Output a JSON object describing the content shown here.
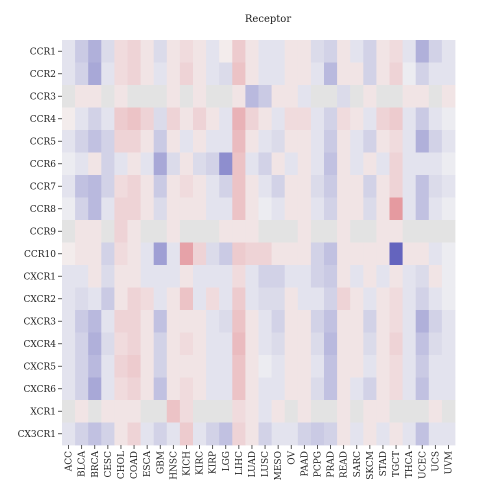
{
  "chart_data": {
    "type": "heatmap",
    "title": "Receptor",
    "rows": [
      "CCR1",
      "CCR2",
      "CCR3",
      "CCR4",
      "CCR5",
      "CCR6",
      "CCR7",
      "CCR8",
      "CCR9",
      "CCR10",
      "CXCR1",
      "CXCR2",
      "CXCR3",
      "CXCR4",
      "CXCR5",
      "CXCR6",
      "XCR1",
      "CX3CR1"
    ],
    "columns": [
      "ACC",
      "BLCA",
      "BRCA",
      "CESC",
      "CHOL",
      "COAD",
      "ESCA",
      "GBM",
      "HNSC",
      "KICH",
      "KIRC",
      "KIRP",
      "LGG",
      "LIHC",
      "LUAD",
      "LUSC",
      "MESO",
      "OV",
      "PAAD",
      "PCPG",
      "PRAD",
      "READ",
      "SARC",
      "SKCM",
      "STAD",
      "TGCT",
      "THCA",
      "UCEC",
      "UCS",
      "UVM"
    ],
    "color_scale": {
      "negative": "#4a4ab4",
      "zero": "#f4f4f4",
      "positive": "#d8505c",
      "missing": "#e3e3e3"
    },
    "values": [
      [
        -0.1,
        -0.25,
        -0.4,
        -0.15,
        0.15,
        0.2,
        0.1,
        -0.15,
        0.1,
        0.15,
        0.1,
        -0.1,
        0.05,
        0.25,
        0.1,
        -0.1,
        -0.1,
        0.1,
        0.1,
        -0.15,
        -0.2,
        0.1,
        -0.1,
        -0.2,
        0.1,
        0.15,
        -0.1,
        -0.4,
        -0.2,
        -0.1
      ],
      [
        -0.1,
        -0.2,
        -0.45,
        -0.1,
        0.15,
        0.2,
        0.1,
        -0.1,
        0.1,
        0.2,
        0.1,
        -0.1,
        -0.15,
        0.3,
        0.1,
        -0.1,
        -0.1,
        0.1,
        0.1,
        -0.1,
        -0.35,
        0.1,
        0.1,
        -0.2,
        0.1,
        0.2,
        -0.05,
        -0.2,
        -0.1,
        -0.1
      ],
      [
        null,
        0.1,
        0.1,
        null,
        0.1,
        null,
        null,
        null,
        0.1,
        null,
        0.1,
        null,
        null,
        0.1,
        -0.35,
        -0.25,
        0.1,
        0.1,
        -0.1,
        null,
        null,
        -0.15,
        null,
        0.1,
        null,
        null,
        0.1,
        0.1,
        null,
        0.1
      ],
      [
        0.05,
        -0.1,
        -0.2,
        -0.1,
        0.25,
        0.3,
        0.2,
        -0.15,
        0.2,
        0.1,
        0.2,
        0.1,
        -0.1,
        0.4,
        0.2,
        0.1,
        -0.1,
        0.15,
        0.15,
        -0.1,
        -0.2,
        0.15,
        0.1,
        -0.1,
        0.2,
        0.25,
        -0.1,
        -0.25,
        -0.1,
        -0.05
      ],
      [
        -0.1,
        -0.2,
        -0.3,
        -0.2,
        0.2,
        0.2,
        0.1,
        -0.25,
        0.1,
        -0.1,
        0.1,
        -0.1,
        -0.1,
        0.35,
        0.1,
        -0.1,
        -0.15,
        0.1,
        0.1,
        -0.1,
        -0.25,
        0.1,
        -0.1,
        -0.2,
        0.1,
        0.15,
        -0.1,
        -0.4,
        -0.2,
        -0.1
      ],
      [
        -0.05,
        -0.1,
        0.1,
        -0.2,
        -0.1,
        0.1,
        -0.1,
        -0.45,
        -0.15,
        0.1,
        -0.15,
        -0.2,
        -0.6,
        0.3,
        -0.1,
        -0.2,
        0.1,
        -0.1,
        0.1,
        -0.1,
        -0.3,
        0.1,
        -0.1,
        0.1,
        -0.1,
        0.2,
        -0.1,
        -0.1,
        -0.1,
        -0.05
      ],
      [
        -0.1,
        -0.3,
        -0.35,
        -0.2,
        0.15,
        0.2,
        0.1,
        -0.25,
        0.1,
        0.15,
        0.1,
        -0.1,
        -0.2,
        0.3,
        0.1,
        -0.1,
        -0.2,
        0.1,
        0.1,
        -0.15,
        -0.25,
        0.1,
        0.1,
        -0.2,
        0.1,
        0.2,
        -0.1,
        -0.3,
        -0.15,
        -0.1
      ],
      [
        -0.05,
        -0.2,
        -0.35,
        -0.1,
        0.2,
        0.2,
        0.1,
        -0.15,
        0.1,
        0.1,
        0.1,
        -0.1,
        -0.1,
        0.3,
        0.1,
        -0.05,
        -0.1,
        0.1,
        0.1,
        -0.1,
        -0.2,
        0.1,
        0.1,
        -0.15,
        0.1,
        0.55,
        -0.1,
        -0.3,
        -0.1,
        -0.05
      ],
      [
        null,
        0.1,
        0.1,
        null,
        0.2,
        0.1,
        null,
        null,
        0.1,
        null,
        null,
        null,
        0.1,
        0.1,
        0.1,
        null,
        null,
        null,
        0.1,
        null,
        null,
        0.1,
        null,
        null,
        0.1,
        0.1,
        null,
        null,
        null,
        null
      ],
      [
        0.05,
        0.1,
        0.1,
        -0.2,
        0.15,
        0.1,
        -0.1,
        -0.5,
        -0.1,
        0.5,
        0.2,
        -0.15,
        -0.25,
        0.25,
        0.2,
        0.2,
        0.1,
        0.1,
        0.1,
        -0.2,
        -0.3,
        0.1,
        0.1,
        0.1,
        0.1,
        -0.85,
        0.1,
        0.1,
        -0.1,
        -0.05
      ],
      [
        -0.1,
        -0.1,
        0.1,
        -0.15,
        0.1,
        0.1,
        -0.1,
        -0.1,
        -0.1,
        0.1,
        -0.1,
        -0.1,
        -0.1,
        0.15,
        -0.1,
        -0.2,
        -0.2,
        -0.1,
        -0.1,
        -0.2,
        -0.25,
        0.1,
        -0.1,
        0.1,
        -0.1,
        0.1,
        -0.1,
        -0.15,
        0.1,
        -0.05
      ],
      [
        -0.1,
        -0.15,
        -0.1,
        -0.25,
        0.1,
        0.2,
        0.15,
        -0.1,
        0.1,
        0.3,
        -0.1,
        0.15,
        -0.1,
        0.25,
        -0.1,
        -0.15,
        -0.15,
        0.1,
        -0.1,
        -0.1,
        -0.2,
        0.2,
        0.1,
        -0.1,
        0.1,
        0.15,
        -0.1,
        -0.2,
        -0.1,
        -0.05
      ],
      [
        -0.1,
        -0.25,
        -0.35,
        -0.1,
        0.2,
        0.2,
        0.1,
        -0.3,
        0.1,
        0.1,
        0.1,
        -0.1,
        -0.15,
        0.3,
        0.1,
        -0.1,
        -0.2,
        0.1,
        0.1,
        -0.2,
        -0.3,
        0.1,
        0.1,
        -0.2,
        0.1,
        0.15,
        -0.1,
        -0.4,
        -0.2,
        -0.1
      ],
      [
        -0.1,
        -0.2,
        -0.4,
        -0.15,
        0.15,
        0.2,
        0.1,
        -0.2,
        0.1,
        0.15,
        0.1,
        -0.1,
        -0.1,
        0.35,
        0.1,
        -0.1,
        -0.15,
        0.1,
        0.1,
        -0.15,
        -0.35,
        0.1,
        0.1,
        -0.15,
        0.1,
        0.2,
        -0.1,
        -0.3,
        -0.15,
        -0.1
      ],
      [
        -0.1,
        -0.2,
        -0.35,
        -0.1,
        0.2,
        0.25,
        0.1,
        -0.2,
        0.1,
        0.1,
        0.1,
        -0.1,
        -0.1,
        0.3,
        0.1,
        -0.05,
        -0.1,
        0.1,
        0.1,
        -0.1,
        -0.3,
        0.1,
        0.1,
        -0.1,
        0.1,
        0.15,
        -0.1,
        -0.25,
        -0.1,
        -0.1
      ],
      [
        -0.1,
        -0.2,
        -0.45,
        -0.1,
        0.15,
        0.2,
        0.1,
        -0.3,
        0.1,
        0.15,
        0.1,
        -0.1,
        -0.1,
        0.3,
        0.1,
        -0.1,
        -0.1,
        0.1,
        0.1,
        -0.15,
        -0.3,
        0.1,
        -0.1,
        -0.2,
        0.1,
        0.15,
        -0.1,
        -0.3,
        -0.1,
        -0.1
      ],
      [
        null,
        0.1,
        null,
        0.1,
        0.1,
        0.1,
        null,
        null,
        0.3,
        0.15,
        null,
        null,
        null,
        0.15,
        0.1,
        -0.1,
        0.1,
        null,
        0.1,
        null,
        null,
        0.1,
        null,
        0.1,
        0.1,
        null,
        null,
        null,
        0.1,
        null
      ],
      [
        -0.1,
        -0.2,
        -0.3,
        -0.2,
        0.1,
        0.2,
        -0.1,
        -0.2,
        -0.1,
        0.25,
        -0.1,
        -0.2,
        -0.3,
        0.2,
        0.1,
        -0.2,
        -0.1,
        -0.1,
        -0.2,
        -0.25,
        -0.2,
        0.1,
        -0.1,
        0.1,
        -0.1,
        0.1,
        -0.1,
        -0.3,
        -0.1,
        -0.1
      ]
    ]
  }
}
